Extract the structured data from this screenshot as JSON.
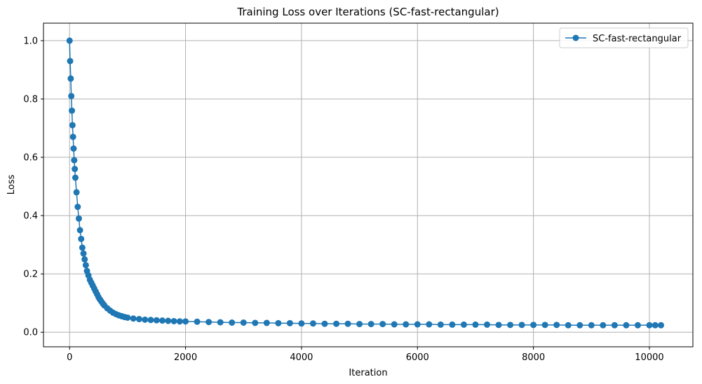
{
  "chart_data": {
    "type": "scatter",
    "title": "Training Loss over Iterations (SC-fast-rectangular)",
    "xlabel": "Iteration",
    "ylabel": "Loss",
    "xlim": [
      -450,
      10750
    ],
    "ylim": [
      -0.05,
      1.06
    ],
    "xticks": [
      0,
      2000,
      4000,
      6000,
      8000,
      10000
    ],
    "xtick_labels": [
      "0",
      "2000",
      "4000",
      "6000",
      "8000",
      "10000"
    ],
    "yticks": [
      0.0,
      0.2,
      0.4,
      0.6,
      0.8,
      1.0
    ],
    "ytick_labels": [
      "0.0",
      "0.2",
      "0.4",
      "0.6",
      "0.8",
      "1.0"
    ],
    "grid": true,
    "legend_position": "top-right",
    "series": [
      {
        "name": "SC-fast-rectangular",
        "color": "#1f77b4",
        "marker": "circle",
        "line": true,
        "x": [
          0,
          10,
          20,
          30,
          40,
          50,
          60,
          70,
          80,
          90,
          100,
          120,
          140,
          160,
          180,
          200,
          220,
          240,
          260,
          280,
          300,
          325,
          350,
          375,
          400,
          425,
          450,
          475,
          500,
          525,
          550,
          575,
          600,
          650,
          700,
          750,
          800,
          850,
          900,
          950,
          1000,
          1100,
          1200,
          1300,
          1400,
          1500,
          1600,
          1700,
          1800,
          1900,
          2000,
          2200,
          2400,
          2600,
          2800,
          3000,
          3200,
          3400,
          3600,
          3800,
          4000,
          4200,
          4400,
          4600,
          4800,
          5000,
          5200,
          5400,
          5600,
          5800,
          6000,
          6200,
          6400,
          6600,
          6800,
          7000,
          7200,
          7400,
          7600,
          7800,
          8000,
          8200,
          8400,
          8600,
          8800,
          9000,
          9200,
          9400,
          9600,
          9800,
          10000,
          10100,
          10200
        ],
        "y": [
          1.0,
          0.93,
          0.87,
          0.81,
          0.76,
          0.71,
          0.67,
          0.63,
          0.59,
          0.56,
          0.53,
          0.48,
          0.43,
          0.39,
          0.35,
          0.32,
          0.29,
          0.27,
          0.25,
          0.23,
          0.21,
          0.195,
          0.18,
          0.17,
          0.16,
          0.15,
          0.14,
          0.13,
          0.12,
          0.112,
          0.105,
          0.098,
          0.092,
          0.082,
          0.074,
          0.067,
          0.062,
          0.058,
          0.055,
          0.052,
          0.05,
          0.047,
          0.045,
          0.043,
          0.042,
          0.041,
          0.04,
          0.039,
          0.038,
          0.037,
          0.037,
          0.036,
          0.035,
          0.034,
          0.033,
          0.033,
          0.032,
          0.032,
          0.031,
          0.031,
          0.03,
          0.03,
          0.029,
          0.029,
          0.029,
          0.028,
          0.028,
          0.028,
          0.027,
          0.027,
          0.027,
          0.027,
          0.026,
          0.026,
          0.026,
          0.026,
          0.026,
          0.025,
          0.025,
          0.025,
          0.025,
          0.025,
          0.025,
          0.024,
          0.024,
          0.024,
          0.024,
          0.024,
          0.024,
          0.024,
          0.024,
          0.024,
          0.024
        ]
      }
    ]
  }
}
